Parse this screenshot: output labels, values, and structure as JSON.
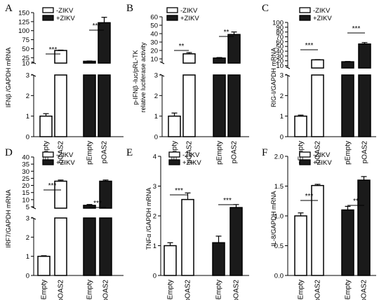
{
  "chart_data": [
    {
      "type": "bar",
      "panel": "A",
      "ylabel": "IFNβ /GAPDH mRNA",
      "categories": [
        "pEmpty",
        "pOAS2",
        "pEmpty",
        "pOAS2"
      ],
      "series": [
        {
          "name": "-ZIKV",
          "values": [
            1.0,
            45.0,
            null,
            null
          ],
          "errors": [
            0.12,
            1.0,
            null,
            null
          ]
        },
        {
          "name": "+ZIKV",
          "values": [
            null,
            null,
            15.0,
            122.0
          ],
          "errors": [
            null,
            null,
            0.8,
            15.0
          ]
        }
      ],
      "axis": {
        "lower": {
          "range": [
            0,
            3
          ],
          "ticks": [
            "0",
            "1",
            "2",
            "3"
          ]
        },
        "upper": {
          "range": [
            10,
            150
          ],
          "ticks": [
            "10",
            "25",
            "50",
            "75",
            "100",
            "125",
            "150"
          ]
        }
      },
      "significance": [
        {
          "pair": "pEmpty vs pOAS2 (-ZIKV)",
          "label": "***"
        },
        {
          "pair": "pEmpty vs pOAS2 (+ZIKV)",
          "label": "***"
        }
      ],
      "legend": [
        "-ZIKV",
        "+ZIKV"
      ],
      "legend_position": "top-left"
    },
    {
      "type": "bar",
      "panel": "B",
      "ylabel": "p-IFNβ -luc/pRL-TK\nrelative luciferase activity",
      "categories": [
        "pEmpty",
        "pOAS2",
        "pEmpty",
        "pOAS2"
      ],
      "series": [
        {
          "name": "-ZIKV",
          "values": [
            1.0,
            16.0,
            null,
            null
          ],
          "errors": [
            0.15,
            1.5,
            null,
            null
          ]
        },
        {
          "name": "+ZIKV",
          "values": [
            null,
            null,
            11.0,
            39.0
          ],
          "errors": [
            null,
            null,
            0.6,
            3.0
          ]
        }
      ],
      "axis": {
        "lower": {
          "range": [
            0,
            3
          ],
          "ticks": [
            "0",
            "1",
            "2",
            "3"
          ]
        },
        "upper": {
          "range": [
            5,
            60
          ],
          "ticks": [
            "10",
            "20",
            "30",
            "40",
            "50",
            "60"
          ]
        }
      },
      "significance": [
        {
          "pair": "pEmpty vs pOAS2 (-ZIKV)",
          "label": "**"
        },
        {
          "pair": "pEmpty vs pOAS2 (+ZIKV)",
          "label": "**"
        }
      ],
      "legend": [
        "-ZIKV",
        "+ZIKV"
      ],
      "legend_position": "top-left"
    },
    {
      "type": "bar",
      "panel": "C",
      "ylabel": "RIG-I/GAPDH mRNA",
      "categories": [
        "pEmpty",
        "pOAS2",
        "pEmpty",
        "pOAS2"
      ],
      "series": [
        {
          "name": "-ZIKV",
          "values": [
            1.0,
            22.0,
            null,
            null
          ],
          "errors": [
            0.05,
            0.5,
            null,
            null
          ]
        },
        {
          "name": "+ZIKV",
          "values": [
            null,
            null,
            18.0,
            55.0
          ],
          "errors": [
            null,
            null,
            0.6,
            3.0
          ]
        }
      ],
      "axis": {
        "lower": {
          "range": [
            0,
            3
          ],
          "ticks": [
            "0",
            "1",
            "2",
            "3"
          ]
        },
        "upper": {
          "range": [
            5,
            100
          ],
          "ticks": [
            "10",
            "20",
            "30",
            "40",
            "50",
            "60",
            "70",
            "80",
            "90",
            "100"
          ]
        }
      },
      "significance": [
        {
          "pair": "pEmpty vs pOAS2 (-ZIKV)",
          "label": "***"
        },
        {
          "pair": "pEmpty vs pOAS2 (+ZIKV)",
          "label": "***"
        }
      ],
      "legend": [
        "-ZIKV",
        "+ZIKV"
      ],
      "legend_position": "top-left"
    },
    {
      "type": "bar",
      "panel": "D",
      "ylabel": "IRF7/GAPDH mRNA",
      "categories": [
        "pEmpty",
        "pOAS2",
        "pEmpty",
        "pOAS2"
      ],
      "series": [
        {
          "name": "-ZIKV",
          "values": [
            1.0,
            23.0,
            null,
            null
          ],
          "errors": [
            0.03,
            0.8,
            null,
            null
          ]
        },
        {
          "name": "+ZIKV",
          "values": [
            null,
            null,
            6.0,
            23.0
          ],
          "errors": [
            null,
            null,
            0.6,
            0.8
          ]
        }
      ],
      "axis": {
        "lower": {
          "range": [
            0,
            3
          ],
          "ticks": [
            "0",
            "1",
            "2",
            "3"
          ]
        },
        "upper": {
          "range": [
            4,
            40
          ],
          "ticks": [
            "5",
            "10",
            "15",
            "20",
            "25",
            "30",
            "35",
            "40"
          ]
        }
      },
      "significance": [
        {
          "pair": "pEmpty vs pOAS2 (-ZIKV)",
          "label": "***"
        },
        {
          "pair": "pEmpty vs pOAS2 (+ZIKV)",
          "label": "***"
        }
      ],
      "legend": [
        "-ZIKV",
        "+ZIKV"
      ],
      "legend_position": "top-left"
    },
    {
      "type": "bar",
      "panel": "E",
      "ylabel": "TNFα /GAPDH mRNA",
      "categories": [
        "pEmpty",
        "pOAS2",
        "pEmpty",
        "pOAS2"
      ],
      "series": [
        {
          "name": "-ZIKV",
          "values": [
            1.0,
            2.55,
            null,
            null
          ],
          "errors": [
            0.1,
            0.22,
            null,
            null
          ]
        },
        {
          "name": "+ZIKV",
          "values": [
            null,
            null,
            1.1,
            2.28
          ],
          "errors": [
            null,
            null,
            0.22,
            0.1
          ]
        }
      ],
      "axis": {
        "range": [
          0,
          4
        ],
        "ticks": [
          "0",
          "1",
          "2",
          "3",
          "4"
        ]
      },
      "significance": [
        {
          "pair": "pEmpty vs pOAS2 (-ZIKV)",
          "label": "***"
        },
        {
          "pair": "pEmpty vs pOAS2 (+ZIKV)",
          "label": "***"
        }
      ],
      "legend": [
        "-ZIKV",
        "+ZIKV"
      ],
      "legend_position": "top-left"
    },
    {
      "type": "bar",
      "panel": "F",
      "ylabel": "IL-8/GAPDH mRNA",
      "categories": [
        "pEmpty",
        "pOAS2",
        "pEmpty",
        "pOAS2"
      ],
      "series": [
        {
          "name": "-ZIKV",
          "values": [
            1.0,
            1.51,
            null,
            null
          ],
          "errors": [
            0.05,
            0.02,
            null,
            null
          ]
        },
        {
          "name": "+ZIKV",
          "values": [
            null,
            null,
            1.1,
            1.6
          ],
          "errors": [
            null,
            null,
            0.06,
            0.06
          ]
        }
      ],
      "axis": {
        "range": [
          0,
          2.0
        ],
        "ticks": [
          "0.0",
          "0.5",
          "1.0",
          "1.5",
          "2.0"
        ]
      },
      "significance": [
        {
          "pair": "pEmpty vs pOAS2 (-ZIKV)",
          "label": "***"
        },
        {
          "pair": "pEmpty vs pOAS2 (+ZIKV)",
          "label": "**"
        }
      ],
      "legend": [
        "-ZIKV",
        "+ZIKV"
      ],
      "legend_position": "top-left"
    }
  ]
}
